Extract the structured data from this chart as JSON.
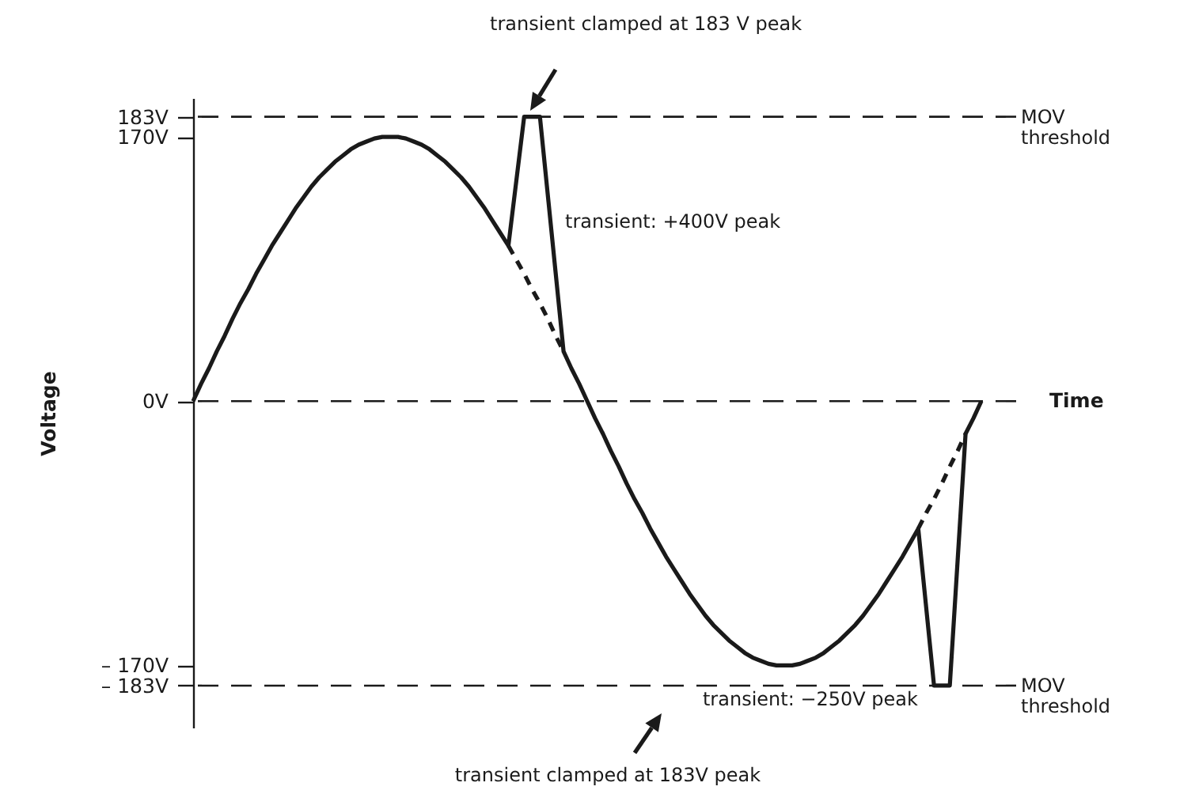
{
  "chart_data": {
    "type": "line",
    "ylabel": "Voltage",
    "xlabel": "Time",
    "categories": [
      null,
      null,
      null,
      null,
      null,
      null,
      null,
      null,
      null,
      null,
      null,
      null,
      null,
      null,
      null,
      null,
      null,
      null,
      null,
      null,
      null,
      null,
      null,
      null,
      null,
      null,
      null,
      null,
      null,
      null,
      null,
      null,
      null,
      null,
      null,
      null,
      null,
      null,
      null,
      null,
      null,
      null,
      null,
      null,
      null,
      null,
      null,
      null,
      null,
      null,
      null,
      null,
      null,
      null,
      null,
      null,
      null,
      null,
      null,
      null,
      null,
      null,
      null,
      null,
      null,
      null,
      null,
      null,
      null,
      null,
      null,
      null,
      null,
      null,
      null,
      null,
      null,
      null,
      null,
      null,
      null,
      null,
      null,
      null,
      null,
      null,
      null,
      null,
      null,
      null,
      null,
      null,
      null,
      null,
      null,
      null,
      null,
      null,
      null,
      null,
      null
    ],
    "series": [
      {
        "color": "#1a1a1a",
        "line_style": "solid",
        "values": [
          0,
          11,
          21,
          32,
          42,
          53,
          63,
          72,
          82,
          91,
          100,
          108,
          116,
          124,
          131,
          138,
          144,
          149,
          154,
          158,
          162,
          165,
          167,
          169,
          170,
          170,
          170,
          169,
          167,
          165,
          162,
          158,
          154,
          149,
          144,
          138,
          131,
          124,
          116,
          108,
          100,
          null,
          183,
          null,
          183,
          null,
          null,
          32,
          21,
          11,
          0,
          -11,
          -21,
          -32,
          -42,
          -53,
          -63,
          -72,
          -82,
          -91,
          -100,
          -108,
          -116,
          -124,
          -131,
          -138,
          -144,
          -149,
          -154,
          -158,
          -162,
          -165,
          -167,
          -169,
          -170,
          -170,
          -170,
          -169,
          -167,
          -165,
          -162,
          -158,
          -154,
          -149,
          -144,
          -138,
          -131,
          -124,
          -116,
          -108,
          -100,
          -91,
          -82,
          null,
          -183,
          null,
          -183,
          null,
          -21,
          -11,
          0
        ]
      },
      {
        "color": "#1a1a1a",
        "line_style": "dashed",
        "values": [
          null,
          null,
          null,
          null,
          null,
          null,
          null,
          null,
          null,
          null,
          null,
          null,
          null,
          null,
          null,
          null,
          null,
          null,
          null,
          null,
          null,
          null,
          null,
          null,
          null,
          null,
          null,
          null,
          null,
          null,
          null,
          null,
          null,
          null,
          null,
          null,
          null,
          null,
          null,
          null,
          100,
          91,
          82,
          72,
          63,
          53,
          42,
          32,
          null,
          null,
          null,
          null,
          null,
          null,
          null,
          null,
          null,
          null,
          null,
          null,
          null,
          null,
          null,
          null,
          null,
          null,
          null,
          null,
          null,
          null,
          null,
          null,
          null,
          null,
          null,
          null,
          null,
          null,
          null,
          null,
          null,
          null,
          null,
          null,
          null,
          null,
          null,
          null,
          null,
          null,
          null,
          null,
          null,
          null,
          null,
          null,
          null,
          null,
          null,
          null,
          null
        ]
      },
      {
        "color": "#1a1a1a",
        "line_style": "dashed",
        "values": [
          null,
          null,
          null,
          null,
          null,
          null,
          null,
          null,
          null,
          null,
          null,
          null,
          null,
          null,
          null,
          null,
          null,
          null,
          null,
          null,
          null,
          null,
          null,
          null,
          null,
          null,
          null,
          null,
          null,
          null,
          null,
          null,
          null,
          null,
          null,
          null,
          null,
          null,
          null,
          null,
          null,
          null,
          null,
          null,
          null,
          null,
          null,
          null,
          null,
          null,
          null,
          null,
          null,
          null,
          null,
          null,
          null,
          null,
          null,
          null,
          null,
          null,
          null,
          null,
          null,
          null,
          null,
          null,
          null,
          null,
          null,
          null,
          null,
          null,
          null,
          null,
          null,
          null,
          null,
          null,
          null,
          null,
          null,
          null,
          null,
          null,
          null,
          null,
          null,
          null,
          null,
          null,
          -82,
          -72,
          -63,
          -53,
          -42,
          -32,
          -21,
          null,
          null
        ]
      }
    ],
    "ylim": [
      -210,
      195
    ],
    "yticks": [
      {
        "value": -183,
        "label": "– 183V"
      },
      {
        "value": -170,
        "label": "– 170V"
      },
      {
        "value": 0,
        "label": "0V"
      },
      {
        "value": 170,
        "label": "170V"
      },
      {
        "value": 183,
        "label": "183V"
      }
    ],
    "ref_lines": [
      {
        "axis": "y",
        "value": 183,
        "label": "MOV threshold",
        "color": "#1a1a1a",
        "line_style": "dashed"
      },
      {
        "axis": "y",
        "value": 0,
        "label": null,
        "color": "#1a1a1a",
        "line_style": "dashed"
      },
      {
        "axis": "y",
        "value": -183,
        "label": "MOV threshold",
        "color": "#1a1a1a",
        "line_style": "dashed"
      }
    ],
    "annotations": [
      "transient clamped at 183 V peak",
      "transient: +400V peak",
      "transient: −250V peak",
      "transient clamped at 183V peak"
    ],
    "tick_labels": "y",
    "grid": false,
    "marker": "none"
  }
}
